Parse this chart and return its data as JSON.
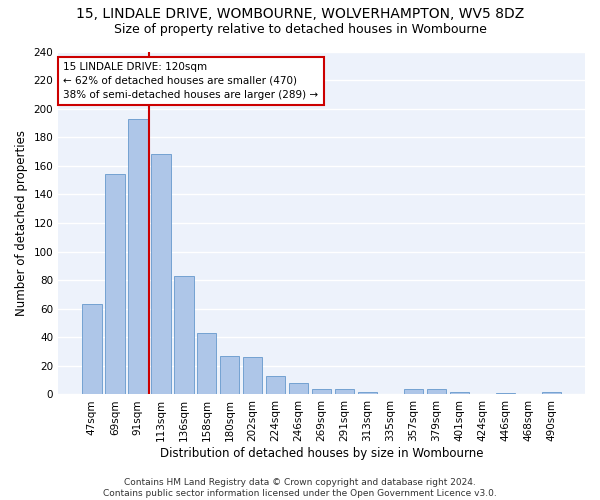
{
  "title": "15, LINDALE DRIVE, WOMBOURNE, WOLVERHAMPTON, WV5 8DZ",
  "subtitle": "Size of property relative to detached houses in Wombourne",
  "xlabel": "Distribution of detached houses by size in Wombourne",
  "ylabel": "Number of detached properties",
  "categories": [
    "47sqm",
    "69sqm",
    "91sqm",
    "113sqm",
    "136sqm",
    "158sqm",
    "180sqm",
    "202sqm",
    "224sqm",
    "246sqm",
    "269sqm",
    "291sqm",
    "313sqm",
    "335sqm",
    "357sqm",
    "379sqm",
    "401sqm",
    "424sqm",
    "446sqm",
    "468sqm",
    "490sqm"
  ],
  "values": [
    63,
    154,
    193,
    168,
    83,
    43,
    27,
    26,
    13,
    8,
    4,
    4,
    2,
    0,
    4,
    4,
    2,
    0,
    1,
    0,
    2
  ],
  "bar_color": "#aec6e8",
  "bar_edge_color": "#6699cc",
  "annotation_line1": "15 LINDALE DRIVE: 120sqm",
  "annotation_line2": "← 62% of detached houses are smaller (470)",
  "annotation_line3": "38% of semi-detached houses are larger (289) →",
  "annotation_box_color": "#ffffff",
  "annotation_box_edge": "#cc0000",
  "vline_color": "#cc0000",
  "vline_x_index": 3,
  "ylim": [
    0,
    240
  ],
  "yticks": [
    0,
    20,
    40,
    60,
    80,
    100,
    120,
    140,
    160,
    180,
    200,
    220,
    240
  ],
  "axes_bg_color": "#edf2fb",
  "grid_color": "#ffffff",
  "fig_bg_color": "#ffffff",
  "title_fontsize": 10,
  "subtitle_fontsize": 9,
  "xlabel_fontsize": 8.5,
  "ylabel_fontsize": 8.5,
  "tick_fontsize": 7.5,
  "annotation_fontsize": 7.5,
  "footer_fontsize": 6.5,
  "footer": "Contains HM Land Registry data © Crown copyright and database right 2024.\nContains public sector information licensed under the Open Government Licence v3.0."
}
